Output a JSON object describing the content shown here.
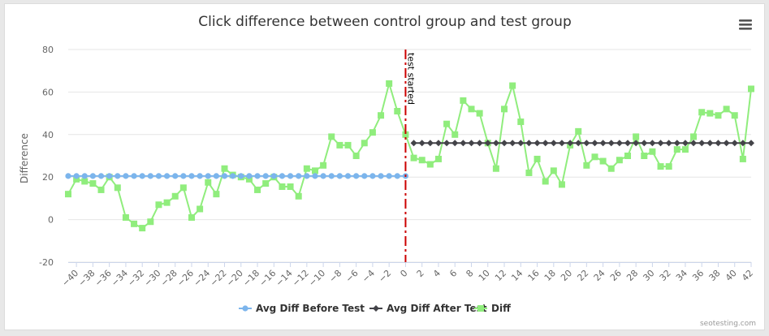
{
  "chart_data": {
    "type": "line",
    "title": "Click difference between control group and test group",
    "ylabel": "Difference",
    "xlabel": "",
    "xlim": [
      -41,
      42
    ],
    "ylim": [
      -20,
      80
    ],
    "y_ticks": [
      -20,
      0,
      20,
      40,
      60,
      80
    ],
    "x_ticks": [
      -40,
      -38,
      -36,
      -34,
      -32,
      -30,
      -28,
      -26,
      -24,
      -22,
      -20,
      -18,
      -16,
      -14,
      -12,
      -10,
      -8,
      -6,
      -4,
      -2,
      0,
      2,
      4,
      6,
      8,
      10,
      12,
      14,
      16,
      18,
      20,
      22,
      24,
      26,
      28,
      30,
      32,
      34,
      36,
      38,
      40,
      42
    ],
    "grid": "horizontal",
    "legend_position": "bottom",
    "annotation": {
      "label": "test started",
      "x": 0,
      "color": "#cc0000"
    },
    "series": [
      {
        "name": "Avg Diff Before Test",
        "color": "#7cb5ec",
        "marker": "circle",
        "x": [
          -41,
          -40,
          -39,
          -38,
          -37,
          -36,
          -35,
          -34,
          -33,
          -32,
          -31,
          -30,
          -29,
          -28,
          -27,
          -26,
          -25,
          -24,
          -23,
          -22,
          -21,
          -20,
          -19,
          -18,
          -17,
          -16,
          -15,
          -14,
          -13,
          -12,
          -11,
          -10,
          -9,
          -8,
          -7,
          -6,
          -5,
          -4,
          -3,
          -2,
          -1,
          0
        ],
        "values": [
          20.5,
          20.5,
          20.5,
          20.5,
          20.5,
          20.5,
          20.5,
          20.5,
          20.5,
          20.5,
          20.5,
          20.5,
          20.5,
          20.5,
          20.5,
          20.5,
          20.5,
          20.5,
          20.5,
          20.5,
          20.5,
          20.5,
          20.5,
          20.5,
          20.5,
          20.5,
          20.5,
          20.5,
          20.5,
          20.5,
          20.5,
          20.5,
          20.5,
          20.5,
          20.5,
          20.5,
          20.5,
          20.5,
          20.5,
          20.5,
          20.5,
          20.5
        ]
      },
      {
        "name": "Avg Diff After Test",
        "color": "#434348",
        "marker": "diamond",
        "x": [
          1,
          2,
          3,
          4,
          5,
          6,
          7,
          8,
          9,
          10,
          11,
          12,
          13,
          14,
          15,
          16,
          17,
          18,
          19,
          20,
          21,
          22,
          23,
          24,
          25,
          26,
          27,
          28,
          29,
          30,
          31,
          32,
          33,
          34,
          35,
          36,
          37,
          38,
          39,
          40,
          41,
          42
        ],
        "values": [
          36,
          36,
          36,
          36,
          36,
          36,
          36,
          36,
          36,
          36,
          36,
          36,
          36,
          36,
          36,
          36,
          36,
          36,
          36,
          36,
          36,
          36,
          36,
          36,
          36,
          36,
          36,
          36,
          36,
          36,
          36,
          36,
          36,
          36,
          36,
          36,
          36,
          36,
          36,
          36,
          36,
          36
        ]
      },
      {
        "name": "Diff",
        "color": "#90ed7d",
        "marker": "square",
        "x": [
          -41,
          -40,
          -39,
          -38,
          -37,
          -36,
          -35,
          -34,
          -33,
          -32,
          -31,
          -30,
          -29,
          -28,
          -27,
          -26,
          -25,
          -24,
          -23,
          -22,
          -21,
          -20,
          -19,
          -18,
          -17,
          -16,
          -15,
          -14,
          -13,
          -12,
          -11,
          -10,
          -9,
          -8,
          -7,
          -6,
          -5,
          -4,
          -3,
          -2,
          -1,
          0,
          1,
          2,
          3,
          4,
          5,
          6,
          7,
          8,
          9,
          10,
          11,
          12,
          13,
          14,
          15,
          16,
          17,
          18,
          19,
          20,
          21,
          22,
          23,
          24,
          25,
          26,
          27,
          28,
          29,
          30,
          31,
          32,
          33,
          34,
          35,
          36,
          37,
          38,
          39,
          40,
          41,
          42
        ],
        "values": [
          12,
          19,
          18,
          17,
          14,
          20,
          15,
          1,
          -2,
          -4,
          -1,
          7,
          8,
          11,
          15,
          1,
          5,
          17.5,
          12,
          24,
          21,
          20,
          19,
          14,
          17,
          20,
          15.5,
          15.5,
          11,
          24,
          23,
          25.5,
          39,
          35,
          35,
          30,
          36,
          41,
          49,
          64,
          51,
          40,
          29,
          28,
          26,
          28.5,
          45,
          40,
          56,
          52,
          50,
          36,
          24,
          52,
          63,
          46,
          22,
          28.5,
          18,
          23,
          16.5,
          35,
          41.5,
          25.5,
          29.5,
          27.5,
          24,
          28,
          30,
          39,
          30,
          32,
          25,
          25,
          33,
          33,
          39,
          50.5,
          50,
          49,
          52,
          49,
          28.5,
          61.5
        ]
      }
    ]
  },
  "ui": {
    "menu_icon": "hamburger-menu-icon",
    "credit": "seotesting.com"
  }
}
